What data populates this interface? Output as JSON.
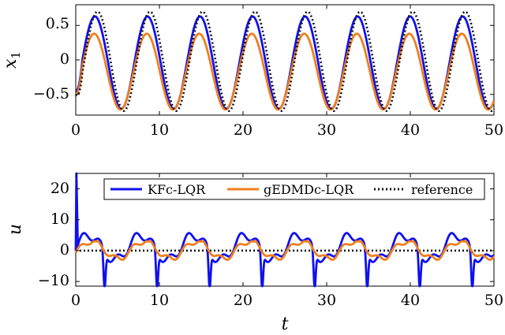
{
  "chart_data": [
    {
      "type": "line",
      "title": "",
      "xlabel": "",
      "ylabel": "x_1",
      "xlim": [
        0,
        50
      ],
      "ylim": [
        -0.8,
        0.8
      ],
      "xticks": [
        0,
        10,
        20,
        30,
        40,
        50
      ],
      "yticks": [
        -0.5,
        0,
        0.5
      ],
      "xtick_labels": [
        "0",
        "10",
        "20",
        "30",
        "40",
        "50"
      ],
      "ytick_labels": [
        "−0.5",
        "0",
        "0.5"
      ],
      "grid": false,
      "legend": false,
      "series": [
        {
          "name": "KFc-LQR",
          "color": "#1010ee",
          "style": "solid",
          "period": 6.28,
          "phase_peak": 2.3,
          "amplitude": 0.67,
          "offset": -0.04,
          "start": -0.45
        },
        {
          "name": "gEDMDc-LQR",
          "color": "#f07f1e",
          "style": "solid",
          "period": 6.28,
          "phase_peak": 2.2,
          "amplitude": 0.55,
          "offset": -0.17,
          "start": -0.5
        },
        {
          "name": "reference",
          "color": "#111111",
          "style": "dotted",
          "period": 6.28,
          "phase_peak": 2.6,
          "amplitude": 0.72,
          "offset": -0.02,
          "start": -0.5
        }
      ]
    },
    {
      "type": "line",
      "title": "",
      "xlabel": "t",
      "ylabel": "u",
      "xlim": [
        0,
        50
      ],
      "ylim": [
        -11.5,
        25
      ],
      "xticks": [
        0,
        10,
        20,
        30,
        40,
        50
      ],
      "yticks": [
        -10,
        0,
        10,
        20
      ],
      "xtick_labels": [
        "0",
        "10",
        "20",
        "30",
        "40",
        "50"
      ],
      "ytick_labels": [
        "−10",
        "0",
        "10",
        "20"
      ],
      "grid": false,
      "legend": true,
      "legend_position": "top-right",
      "series": [
        {
          "name": "KFc-LQR",
          "color": "#1010ee",
          "style": "solid",
          "initial_spike": 25,
          "peak": 5,
          "trough": -10,
          "period": 6.28
        },
        {
          "name": "gEDMDc-LQR",
          "color": "#f07f1e",
          "style": "solid",
          "peak": 3,
          "trough": -4,
          "period": 6.28
        },
        {
          "name": "reference",
          "color": "#111111",
          "style": "dotted"
        }
      ]
    }
  ]
}
